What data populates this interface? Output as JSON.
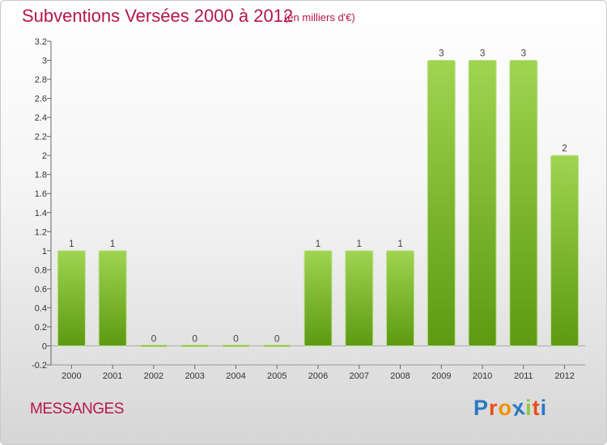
{
  "header": {
    "title": "Subventions Versées 2000 à 2012",
    "subtitle": "(en milliers d'€)"
  },
  "footer": {
    "commune": "MESSANGES",
    "logo_letters": [
      "P",
      "r",
      "o",
      "x",
      "i",
      "t",
      "i"
    ],
    "logo_colors": [
      "#2b78c4",
      "#e84e1b",
      "#f29200",
      "#2b78c4",
      "#8dc63f",
      "#e84e1b",
      "#2b78c4"
    ]
  },
  "chart_data": {
    "type": "bar",
    "categories": [
      "2000",
      "2001",
      "2002",
      "2003",
      "2004",
      "2005",
      "2006",
      "2007",
      "2008",
      "2009",
      "2010",
      "2011",
      "2012"
    ],
    "values": [
      1,
      1,
      0,
      0,
      0,
      0,
      1,
      1,
      1,
      3,
      3,
      3,
      2
    ],
    "data_labels": [
      "1",
      "1",
      "0",
      "0",
      "0",
      "0",
      "1",
      "1",
      "1",
      "3",
      "3",
      "3",
      "2"
    ],
    "y_ticks": [
      "-0.2",
      "0",
      "0.2",
      "0.4",
      "0.6",
      "0.8",
      "1",
      "1.2",
      "1.4",
      "1.6",
      "1.8",
      "2",
      "2.2",
      "2.4",
      "2.6",
      "2.8",
      "3",
      "3.2"
    ],
    "ylim": [
      -0.2,
      3.2
    ],
    "grid": false,
    "colors": {
      "bar_top": "#9fd451",
      "bar_bottom": "#5c9a12",
      "axis": "#666666"
    }
  }
}
